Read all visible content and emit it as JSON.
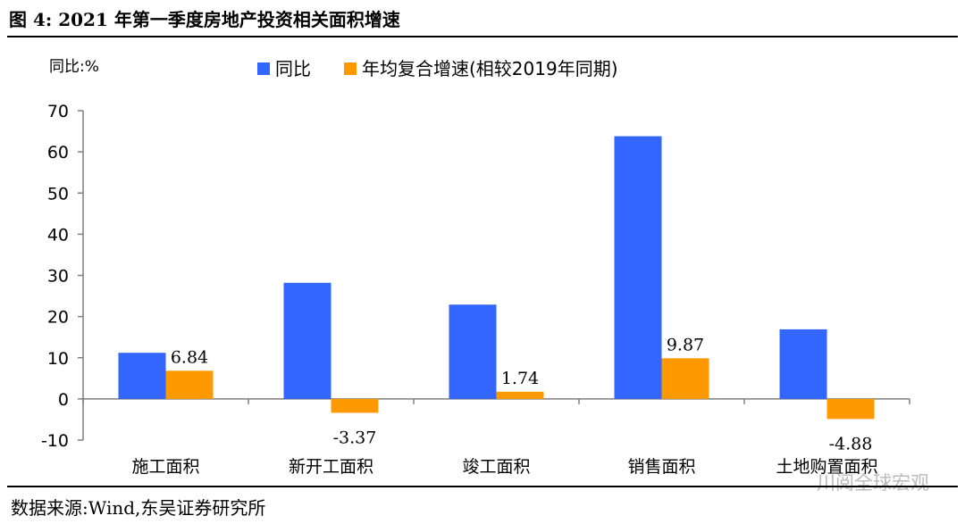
{
  "figure": {
    "title": "图 4:   2021 年第一季度房地产投资相关面积增速",
    "source": "数据来源:Wind,东吴证券研究所",
    "watermark": "川阅全球宏观"
  },
  "colors": {
    "series1": "#3366ff",
    "series2": "#ff9900",
    "axis": "#7f7f7f"
  },
  "chart_data": {
    "type": "bar",
    "ylabel": "同比:%",
    "ylim": [
      -10,
      70
    ],
    "yticks": [
      -10,
      0,
      10,
      20,
      30,
      40,
      50,
      60,
      70
    ],
    "categories": [
      "施工面积",
      "新开工面积",
      "竣工面积",
      "销售面积",
      "土地购置面积"
    ],
    "series": [
      {
        "name": "同比",
        "values": [
          11.2,
          28.2,
          22.9,
          63.8,
          16.9
        ],
        "labels": [
          "",
          "",
          "",
          "",
          ""
        ]
      },
      {
        "name": "年均复合增速(相较2019年同期)",
        "values": [
          6.84,
          -3.37,
          1.74,
          9.87,
          -4.88
        ],
        "labels": [
          "6.84",
          "-3.37",
          "1.74",
          "9.87",
          "-4.88"
        ]
      }
    ],
    "legend_position": "top"
  }
}
